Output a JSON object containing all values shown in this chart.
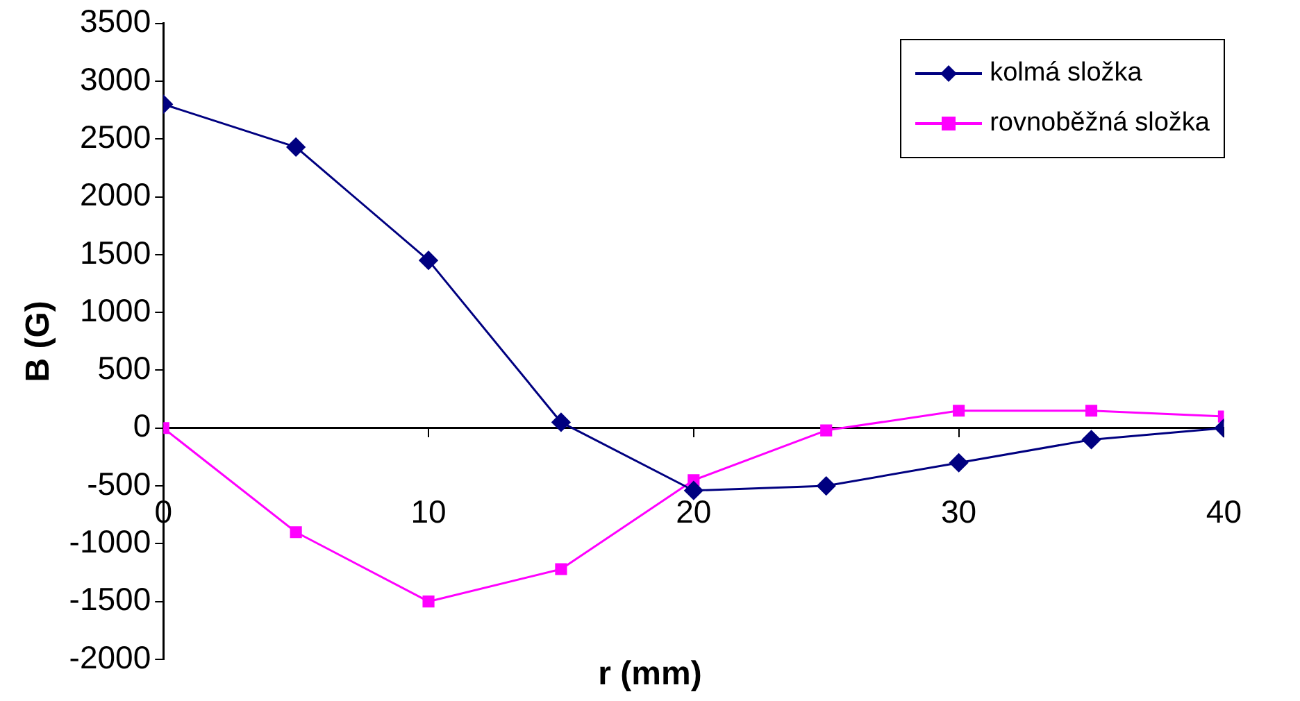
{
  "chart_data": {
    "type": "line",
    "xlabel": "r (mm)",
    "ylabel": "B (G)",
    "x": [
      0,
      5,
      10,
      15,
      20,
      25,
      30,
      35,
      40
    ],
    "series": [
      {
        "name": "kolmá složka",
        "color": "#000080",
        "marker": "diamond",
        "values": [
          2800,
          2430,
          1450,
          50,
          -540,
          -500,
          -300,
          -100,
          0
        ]
      },
      {
        "name": "rovnoběžná složka",
        "color": "#ff00ff",
        "marker": "square",
        "values": [
          0,
          -900,
          -1500,
          -1220,
          -450,
          -20,
          150,
          150,
          100
        ]
      }
    ],
    "xlim": [
      0,
      40
    ],
    "xticks": [
      0,
      10,
      20,
      30,
      40
    ],
    "ylim": [
      -2000,
      3500
    ],
    "yticks": [
      -2000,
      -1500,
      -1000,
      -500,
      0,
      500,
      1000,
      1500,
      2000,
      2500,
      3000,
      3500
    ],
    "grid": false,
    "legend": "top right",
    "line_style": "solid"
  }
}
